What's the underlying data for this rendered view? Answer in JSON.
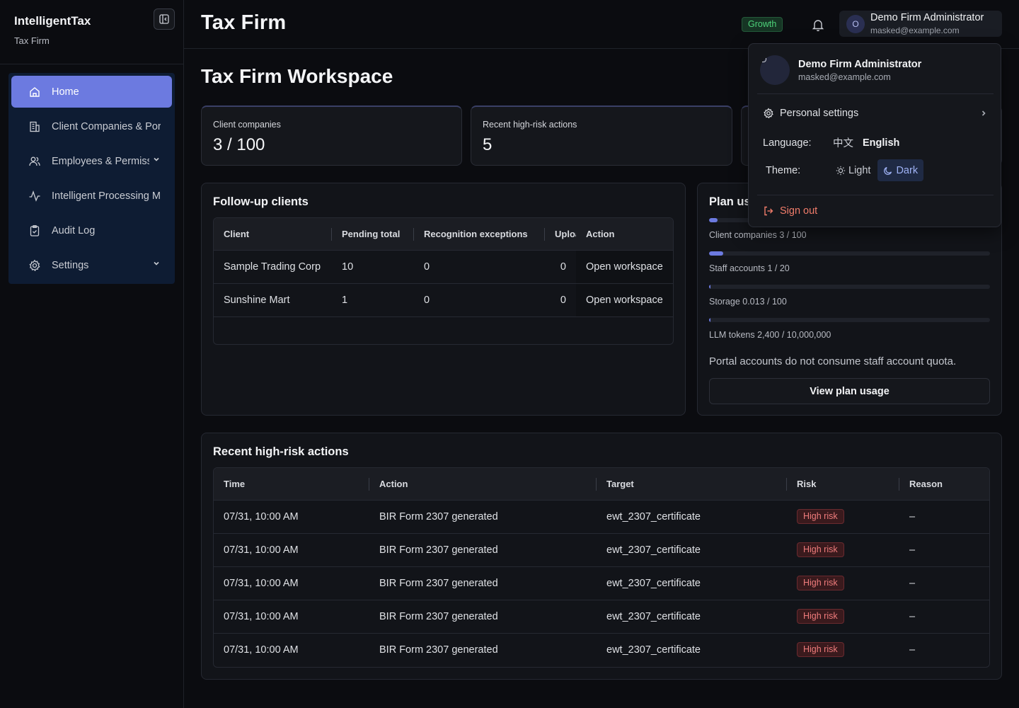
{
  "sidebar": {
    "brand": "IntelligentTax",
    "subtitle": "Tax Firm",
    "items": [
      {
        "label": "Home",
        "icon": "home-icon"
      },
      {
        "label": "Client Companies & Portal",
        "icon": "building-icon"
      },
      {
        "label": "Employees & Permissions",
        "icon": "users-icon"
      },
      {
        "label": "Intelligent Processing Monitor",
        "icon": "activity-icon"
      },
      {
        "label": "Audit Log",
        "icon": "clipboard-icon"
      },
      {
        "label": "Settings",
        "icon": "gear-icon"
      }
    ]
  },
  "header": {
    "title": "Tax Firm",
    "plan_badge": "Growth",
    "user_initial": "O",
    "user_name": "Demo Firm Administrator",
    "user_email": "masked@example.com"
  },
  "workspace_title": "Tax Firm Workspace",
  "stats": [
    {
      "title": "Client companies",
      "value": "3 / 100"
    },
    {
      "title": "Recent high-risk actions",
      "value": "5"
    }
  ],
  "followup": {
    "title": "Follow-up clients",
    "columns": [
      "Client",
      "Pending total",
      "Recognition exceptions",
      "Uploads",
      "Action"
    ],
    "rows": [
      {
        "client": "Sample Trading Corp",
        "pending": "10",
        "exceptions": "0",
        "uploads": "0",
        "action": "Open workspace"
      },
      {
        "client": "Sunshine Mart",
        "pending": "1",
        "exceptions": "0",
        "uploads": "0",
        "action": "Open workspace"
      }
    ]
  },
  "plan": {
    "title": "Plan usage",
    "items": [
      {
        "label": "Client companies 3 / 100",
        "fraction": 0.03
      },
      {
        "label": "Staff accounts 1 / 20",
        "fraction": 0.05
      },
      {
        "label": "Storage 0.013 / 100",
        "fraction": 0.00013
      },
      {
        "label": "LLM tokens 2,400 / 10,000,000",
        "fraction": 0.00024
      }
    ],
    "note": "Portal accounts do not consume staff account quota.",
    "button": "View plan usage"
  },
  "risk_table": {
    "title": "Recent high-risk actions",
    "columns": [
      "Time",
      "Action",
      "Target",
      "Risk",
      "Reason"
    ],
    "rows": [
      {
        "time": "07/31, 10:00 AM",
        "action": "BIR Form 2307 generated",
        "target": "ewt_2307_certificate",
        "risk": "High risk",
        "reason": "–"
      },
      {
        "time": "07/31, 10:00 AM",
        "action": "BIR Form 2307 generated",
        "target": "ewt_2307_certificate",
        "risk": "High risk",
        "reason": "–"
      },
      {
        "time": "07/31, 10:00 AM",
        "action": "BIR Form 2307 generated",
        "target": "ewt_2307_certificate",
        "risk": "High risk",
        "reason": "–"
      },
      {
        "time": "07/31, 10:00 AM",
        "action": "BIR Form 2307 generated",
        "target": "ewt_2307_certificate",
        "risk": "High risk",
        "reason": "–"
      },
      {
        "time": "07/31, 10:00 AM",
        "action": "BIR Form 2307 generated",
        "target": "ewt_2307_certificate",
        "risk": "High risk",
        "reason": "–"
      }
    ]
  },
  "user_menu": {
    "name": "Demo Firm Administrator",
    "email": "masked@example.com",
    "personal_settings": "Personal settings",
    "language_label": "Language:",
    "lang_zh": "中文",
    "lang_en": "English",
    "theme_label": "Theme:",
    "theme_light": "Light",
    "theme_dark": "Dark",
    "sign_out": "Sign out"
  }
}
